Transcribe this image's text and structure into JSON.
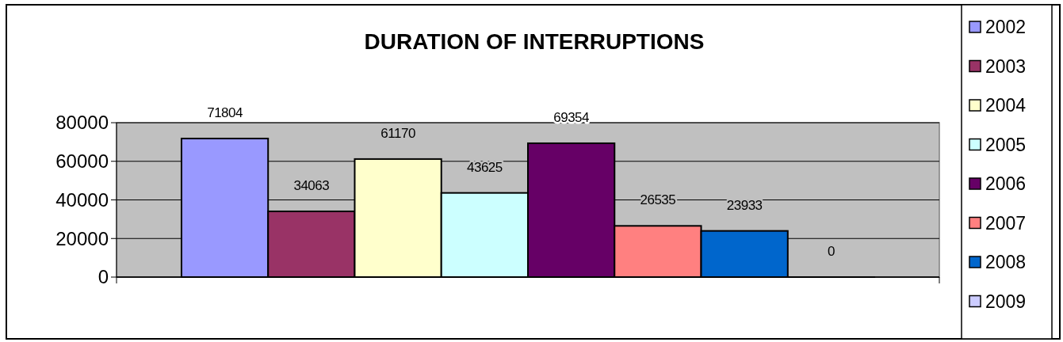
{
  "chart_data": {
    "type": "bar",
    "title": "DURATION OF INTERRUPTIONS",
    "categories": [
      null
    ],
    "series": [
      {
        "name": "2002",
        "color": "#9999ff",
        "values": [
          71804
        ]
      },
      {
        "name": "2003",
        "color": "#993366",
        "values": [
          34063
        ]
      },
      {
        "name": "2004",
        "color": "#ffffcc",
        "values": [
          61170
        ]
      },
      {
        "name": "2005",
        "color": "#ccffff",
        "values": [
          43625
        ]
      },
      {
        "name": "2006",
        "color": "#660066",
        "values": [
          69354
        ]
      },
      {
        "name": "2007",
        "color": "#ff8080",
        "values": [
          26535
        ]
      },
      {
        "name": "2008",
        "color": "#0066cc",
        "values": [
          23933
        ]
      },
      {
        "name": "2009",
        "color": "#ccccff",
        "values": [
          0
        ]
      }
    ],
    "ylim": [
      0,
      80000
    ],
    "yticks": [
      0,
      20000,
      40000,
      60000,
      80000
    ],
    "grid": "y",
    "legend": "right",
    "data_labels": true
  }
}
